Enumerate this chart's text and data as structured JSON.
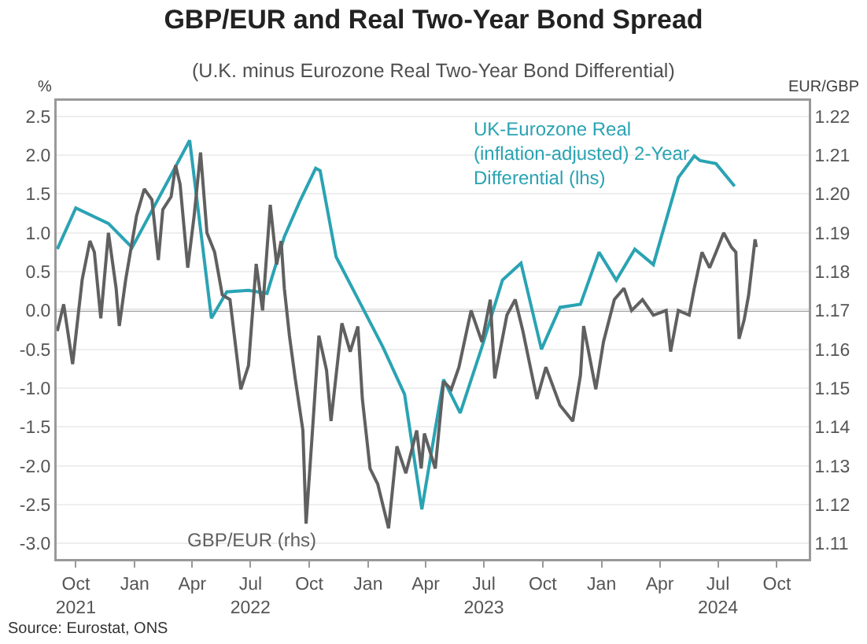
{
  "chart_data": {
    "type": "line",
    "title": "GBP/EUR and Real Two-Year Bond Spread",
    "subtitle": "(U.K. minus Eurozone Real Two-Year Bond Differential)",
    "ylabel": "%",
    "y2label": "EUR/GBP",
    "annotations": [
      "Source: Eurostat, ONS"
    ],
    "xlim": [
      "2021-09-01",
      "2024-11-20"
    ],
    "xticks": [
      {
        "value": "2021-10-01",
        "label": "Oct\n2021"
      },
      {
        "value": "2022-01-01",
        "label": "Jan"
      },
      {
        "value": "2022-04-01",
        "label": "Apr"
      },
      {
        "value": "2022-07-01",
        "label": "Jul\n2022"
      },
      {
        "value": "2022-10-01",
        "label": "Oct"
      },
      {
        "value": "2023-01-01",
        "label": "Jan"
      },
      {
        "value": "2023-04-01",
        "label": "Apr"
      },
      {
        "value": "2023-07-01",
        "label": "Jul\n2023"
      },
      {
        "value": "2023-10-01",
        "label": "Oct"
      },
      {
        "value": "2024-01-01",
        "label": "Jan"
      },
      {
        "value": "2024-04-01",
        "label": "Apr"
      },
      {
        "value": "2024-07-01",
        "label": "Jul\n2024"
      },
      {
        "value": "2024-10-01",
        "label": "Oct"
      }
    ],
    "ylim": [
      -3.2,
      2.7
    ],
    "yticks": [
      {
        "value": -3,
        "label": "-3.0"
      },
      -2.5,
      {
        "value": -2,
        "label": "-2.0"
      },
      -1.5,
      {
        "value": -1,
        "label": "-1.0"
      },
      -0.5,
      {
        "value": 0,
        "label": "0.0"
      },
      0.5,
      {
        "value": 1,
        "label": "1.0"
      },
      1.5,
      {
        "value": 2,
        "label": "2.0"
      },
      2.5
    ],
    "y2lim": [
      1.106,
      1.224
    ],
    "y2ticks": [
      1.11,
      1.12,
      1.13,
      1.14,
      1.15,
      1.16,
      1.17,
      1.18,
      1.19,
      {
        "value": 1.2,
        "label": "1.20"
      },
      1.21,
      1.22
    ],
    "grid": "y",
    "legend": false,
    "marker": "none",
    "line_style": "solid",
    "ref_lines": [
      {
        "axis": "y",
        "value": 0,
        "label": null,
        "color": "#808080"
      }
    ],
    "series": [
      {
        "name": "UK-Eurozone Real (inflation-adjusted) 2-Year Differential (lhs)",
        "color": "#2aa3b3",
        "x": [
          "2021-09-02",
          "2021-10-01",
          "2021-11-21",
          "2021-12-28",
          "2022-03-28",
          "2022-05-01",
          "2022-05-25",
          "2022-06-28",
          "2022-07-27",
          "2022-08-23",
          "2022-09-17",
          "2022-10-11",
          "2022-10-18",
          "2022-11-12",
          "2022-12-23",
          "2023-01-24",
          "2023-02-27",
          "2023-03-26",
          "2023-04-29",
          "2023-05-25",
          "2023-06-28",
          "2023-07-30",
          "2023-08-28",
          "2023-09-29",
          "2023-10-28",
          "2023-11-29",
          "2023-12-28",
          "2024-01-24",
          "2024-02-22",
          "2024-03-22",
          "2024-04-30",
          "2024-05-25",
          "2024-06-03",
          "2024-06-28",
          "2024-07-27"
        ],
        "values": [
          0.79,
          1.32,
          1.12,
          0.81,
          2.19,
          -0.1,
          0.24,
          0.26,
          0.22,
          0.95,
          1.42,
          1.83,
          1.8,
          0.69,
          0.04,
          -0.47,
          -1.08,
          -2.56,
          -0.89,
          -1.32,
          -0.47,
          0.39,
          0.61,
          -0.5,
          0.04,
          0.08,
          0.75,
          0.39,
          0.79,
          0.59,
          1.71,
          1.99,
          1.93,
          1.89,
          1.6
        ]
      },
      {
        "name": "GBP/EUR (rhs)",
        "color": "#606060",
        "axis": "y2",
        "x": [
          "2021-09-02",
          "2021-09-12",
          "2021-09-26",
          "2021-10-11",
          "2021-10-23",
          "2021-10-30",
          "2021-11-09",
          "2021-11-21",
          "2021-12-03",
          "2021-12-08",
          "2021-12-18",
          "2022-01-04",
          "2022-01-16",
          "2022-01-28",
          "2022-02-07",
          "2022-02-14",
          "2022-02-27",
          "2022-03-06",
          "2022-03-13",
          "2022-03-25",
          "2022-04-04",
          "2022-04-14",
          "2022-04-24",
          "2022-05-06",
          "2022-05-18",
          "2022-05-30",
          "2022-06-16",
          "2022-06-28",
          "2022-07-10",
          "2022-07-20",
          "2022-08-01",
          "2022-08-11",
          "2022-08-18",
          "2022-08-23",
          "2022-08-31",
          "2022-09-09",
          "2022-09-21",
          "2022-09-26",
          "2022-10-06",
          "2022-10-16",
          "2022-10-28",
          "2022-11-04",
          "2022-11-21",
          "2022-12-04",
          "2022-12-16",
          "2022-12-23",
          "2023-01-04",
          "2023-01-16",
          "2023-02-02",
          "2023-02-15",
          "2023-03-01",
          "2023-03-18",
          "2023-03-25",
          "2023-03-30",
          "2023-04-16",
          "2023-04-29",
          "2023-05-11",
          "2023-05-23",
          "2023-06-11",
          "2023-06-28",
          "2023-07-11",
          "2023-07-18",
          "2023-08-06",
          "2023-08-19",
          "2023-08-31",
          "2023-09-22",
          "2023-10-06",
          "2023-10-28",
          "2023-11-17",
          "2023-11-29",
          "2023-12-04",
          "2023-12-23",
          "2024-01-04",
          "2024-01-21",
          "2024-02-05",
          "2024-02-17",
          "2024-03-05",
          "2024-03-22",
          "2024-04-11",
          "2024-04-18",
          "2024-04-30",
          "2024-05-17",
          "2024-05-25",
          "2024-06-06",
          "2024-06-18",
          "2024-06-28",
          "2024-07-10",
          "2024-07-22",
          "2024-07-29",
          "2024-08-03",
          "2024-08-11",
          "2024-08-18",
          "2024-08-28",
          "2024-08-30"
        ],
        "values": [
          1.1647,
          1.1716,
          1.1562,
          1.178,
          1.1879,
          1.185,
          1.168,
          1.19,
          1.1757,
          1.166,
          1.178,
          1.1944,
          1.2013,
          1.1985,
          1.183,
          1.196,
          1.1993,
          1.2074,
          1.2025,
          1.181,
          1.1944,
          1.2107,
          1.19,
          1.185,
          1.174,
          1.1728,
          1.1497,
          1.1558,
          1.182,
          1.17,
          1.1972,
          1.1818,
          1.1879,
          1.1757,
          1.1635,
          1.1525,
          1.1391,
          1.1151,
          1.1391,
          1.1635,
          1.1546,
          1.1415,
          1.1667,
          1.1594,
          1.1659,
          1.1472,
          1.1293,
          1.1253,
          1.1139,
          1.135,
          1.1281,
          1.1391,
          1.1293,
          1.1383,
          1.1293,
          1.1517,
          1.1497,
          1.1554,
          1.17,
          1.1619,
          1.1728,
          1.1525,
          1.1688,
          1.1728,
          1.1647,
          1.1472,
          1.1554,
          1.1456,
          1.1415,
          1.1533,
          1.166,
          1.1497,
          1.1619,
          1.1728,
          1.1757,
          1.17,
          1.1728,
          1.1688,
          1.17,
          1.1594,
          1.17,
          1.1688,
          1.1757,
          1.185,
          1.181,
          1.185,
          1.19,
          1.1863,
          1.185,
          1.1627,
          1.1676,
          1.174,
          1.1883,
          1.1863
        ]
      }
    ]
  }
}
